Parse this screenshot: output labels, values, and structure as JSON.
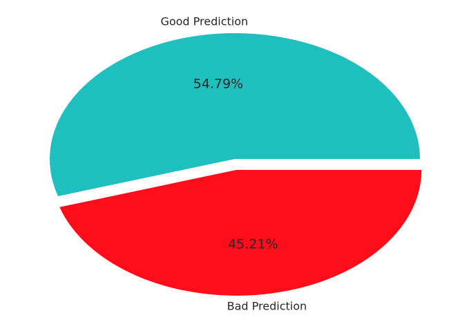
{
  "chart_data": {
    "type": "pie",
    "slices": [
      {
        "label": "Good Prediction",
        "value": 54.79,
        "display": "54.79%",
        "color": "#20bfbf",
        "explode": false
      },
      {
        "label": "Bad Prediction",
        "value": 45.21,
        "display": "45.21%",
        "color": "#ff0d1a",
        "explode": true
      }
    ],
    "start_angle_deg": 0,
    "direction": "counterclockwise",
    "legend": "none"
  }
}
